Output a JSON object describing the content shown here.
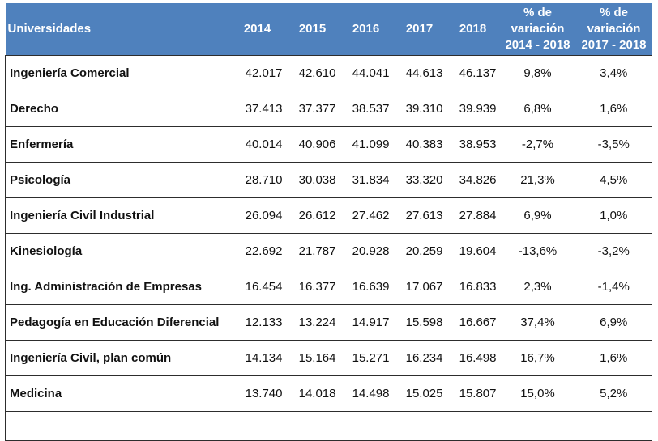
{
  "table": {
    "headers": [
      "Universidades",
      "2014",
      "2015",
      "2016",
      "2017",
      "2018",
      [
        "% de",
        "variación",
        "2014 - 2018"
      ],
      [
        "% de",
        "variación",
        "2017 - 2018"
      ]
    ],
    "rows": [
      [
        "Ingeniería Comercial",
        "42.017",
        "42.610",
        "44.041",
        "44.613",
        "46.137",
        "9,8%",
        "3,4%"
      ],
      [
        "Derecho",
        "37.413",
        "37.377",
        "38.537",
        "39.310",
        "39.939",
        "6,8%",
        "1,6%"
      ],
      [
        "Enfermería",
        "40.014",
        "40.906",
        "41.099",
        "40.383",
        "38.953",
        "-2,7%",
        "-3,5%"
      ],
      [
        "Psicología",
        "28.710",
        "30.038",
        "31.834",
        "33.320",
        "34.826",
        "21,3%",
        "4,5%"
      ],
      [
        "Ingeniería Civil Industrial",
        "26.094",
        "26.612",
        "27.462",
        "27.613",
        "27.884",
        "6,9%",
        "1,0%"
      ],
      [
        "Kinesiología",
        "22.692",
        "21.787",
        "20.928",
        "20.259",
        "19.604",
        "-13,6%",
        "-3,2%"
      ],
      [
        "Ing. Administración de Empresas",
        "16.454",
        "16.377",
        "16.639",
        "17.067",
        "16.833",
        "2,3%",
        "-1,4%"
      ],
      [
        "Pedagogía en Educación Diferencial",
        "12.133",
        "13.224",
        "14.917",
        "15.598",
        "16.667",
        "37,4%",
        "6,9%"
      ],
      [
        "Ingeniería Civil, plan común",
        "14.134",
        "15.164",
        "15.271",
        "16.234",
        "16.498",
        "16,7%",
        "1,6%"
      ],
      [
        "Medicina",
        "13.740",
        "14.018",
        "14.498",
        "15.025",
        "15.807",
        "15,0%",
        "5,2%"
      ]
    ]
  }
}
